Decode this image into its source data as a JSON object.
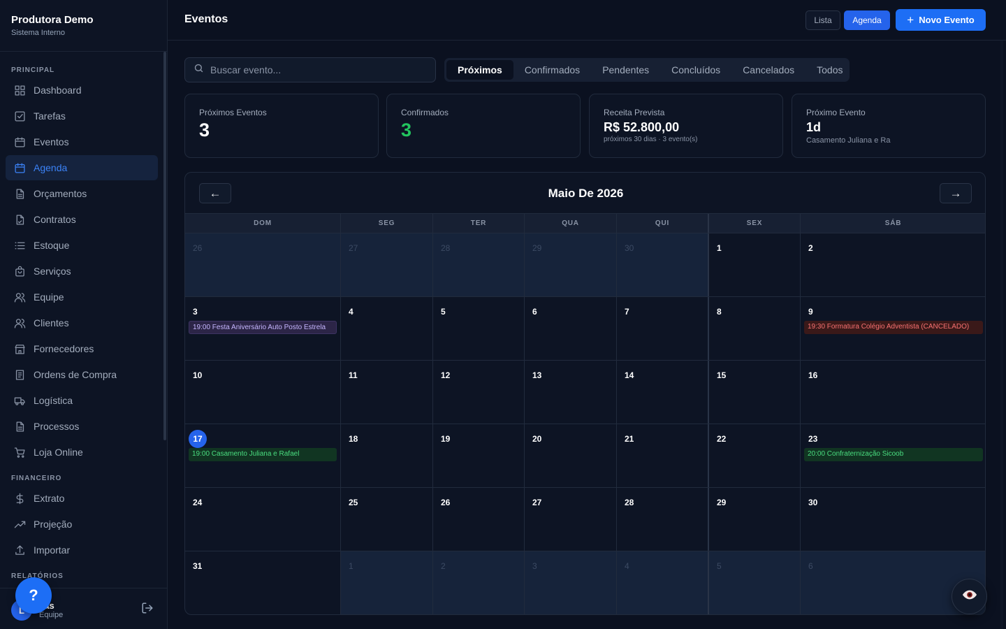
{
  "brand": {
    "title": "Produtora Demo",
    "subtitle": "Sistema Interno"
  },
  "sidebar": {
    "sections": {
      "principal": "PRINCIPAL",
      "financeiro": "FINANCEIRO",
      "relatorios": "RELATÓRIOS"
    },
    "items": [
      {
        "label": "Dashboard",
        "icon": "grid-icon"
      },
      {
        "label": "Tarefas",
        "icon": "checkbox-icon"
      },
      {
        "label": "Eventos",
        "icon": "calendar-icon"
      },
      {
        "label": "Agenda",
        "icon": "calendar-icon",
        "active": true
      },
      {
        "label": "Orçamentos",
        "icon": "document-icon"
      },
      {
        "label": "Contratos",
        "icon": "document-signed-icon"
      },
      {
        "label": "Estoque",
        "icon": "list-icon"
      },
      {
        "label": "Serviços",
        "icon": "bag-icon"
      },
      {
        "label": "Equipe",
        "icon": "users-icon"
      },
      {
        "label": "Clientes",
        "icon": "users-icon"
      },
      {
        "label": "Fornecedores",
        "icon": "store-icon"
      },
      {
        "label": "Ordens de Compra",
        "icon": "receipt-icon"
      },
      {
        "label": "Logística",
        "icon": "truck-icon"
      },
      {
        "label": "Processos",
        "icon": "document-icon"
      },
      {
        "label": "Loja Online",
        "icon": "cart-icon"
      }
    ],
    "finance_items": [
      {
        "label": "Extrato",
        "icon": "dollar-icon"
      },
      {
        "label": "Projeção",
        "icon": "trending-up-icon"
      },
      {
        "label": "Importar",
        "icon": "upload-icon"
      }
    ],
    "user": {
      "initial": "L",
      "name": "cas",
      "role": "Equipe"
    },
    "help_label": "?"
  },
  "header": {
    "title": "Eventos",
    "view_lista": "Lista",
    "view_agenda": "Agenda",
    "new_event": "Novo Evento"
  },
  "search": {
    "placeholder": "Buscar evento...",
    "value": ""
  },
  "filters": [
    "Próximos",
    "Confirmados",
    "Pendentes",
    "Concluídos",
    "Cancelados",
    "Todos"
  ],
  "active_filter": "Próximos",
  "stats": {
    "proximos": {
      "label": "Próximos Eventos",
      "value": "3"
    },
    "confirmados": {
      "label": "Confirmados",
      "value": "3"
    },
    "receita": {
      "label": "Receita Prevista",
      "value": "R$ 52.800,00",
      "note": "próximos 30 dias · 3 evento(s)"
    },
    "proximo": {
      "label": "Próximo Evento",
      "value": "1d",
      "note": "Casamento Juliana e Ra"
    }
  },
  "colors": {
    "accent": "#2563eb",
    "confirm_green": "#22c55e",
    "cancel_red": "#f87171",
    "purple": "#c4b5fd"
  },
  "calendar": {
    "title": "Maio De 2026",
    "prev_label": "←",
    "next_label": "→",
    "weekdays": [
      "DOM",
      "SEG",
      "TER",
      "QUA",
      "QUI",
      "SEX",
      "SÁB"
    ],
    "weeks": [
      [
        {
          "d": "26",
          "o": true
        },
        {
          "d": "27",
          "o": true
        },
        {
          "d": "28",
          "o": true
        },
        {
          "d": "29",
          "o": true
        },
        {
          "d": "30",
          "o": true
        },
        {
          "d": "1"
        },
        {
          "d": "2"
        }
      ],
      [
        {
          "d": "3",
          "ev": "19:00 Festa Aniversário Auto Posto Estrela",
          "c": "purple"
        },
        {
          "d": "4"
        },
        {
          "d": "5"
        },
        {
          "d": "6"
        },
        {
          "d": "7"
        },
        {
          "d": "8"
        },
        {
          "d": "9",
          "ev": "19:30 Formatura Colégio Adventista (CANCELADO)",
          "c": "red"
        }
      ],
      [
        {
          "d": "10"
        },
        {
          "d": "11"
        },
        {
          "d": "12"
        },
        {
          "d": "13"
        },
        {
          "d": "14"
        },
        {
          "d": "15"
        },
        {
          "d": "16"
        }
      ],
      [
        {
          "d": "17",
          "today": true,
          "ev": "19:00 Casamento Juliana e Rafael",
          "c": "green"
        },
        {
          "d": "18"
        },
        {
          "d": "19"
        },
        {
          "d": "20"
        },
        {
          "d": "21"
        },
        {
          "d": "22"
        },
        {
          "d": "23",
          "ev": "20:00 Confraternização Sicoob",
          "c": "green"
        }
      ],
      [
        {
          "d": "24"
        },
        {
          "d": "25"
        },
        {
          "d": "26"
        },
        {
          "d": "27"
        },
        {
          "d": "28"
        },
        {
          "d": "29"
        },
        {
          "d": "30"
        }
      ],
      [
        {
          "d": "31"
        },
        {
          "d": "1",
          "o": true
        },
        {
          "d": "2",
          "o": true
        },
        {
          "d": "3",
          "o": true
        },
        {
          "d": "4",
          "o": true
        },
        {
          "d": "5",
          "o": true
        },
        {
          "d": "6",
          "o": true
        }
      ]
    ]
  }
}
